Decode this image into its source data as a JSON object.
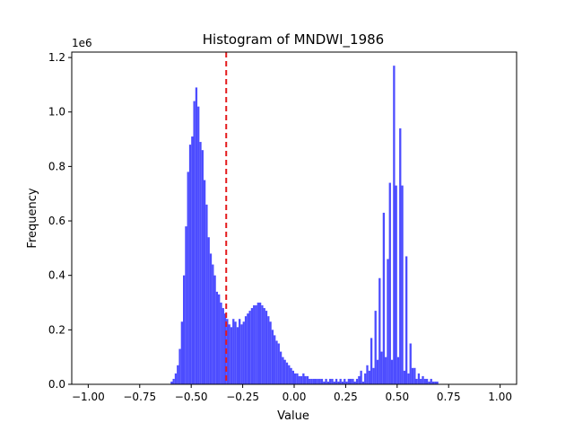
{
  "chart_data": {
    "type": "bar",
    "title": "Histogram of MNDWI_1986",
    "xlabel": "Value",
    "ylabel": "Frequency",
    "y_multiplier_label": "1e6",
    "xlim": [
      -1.08,
      1.08
    ],
    "ylim": [
      0,
      1.22
    ],
    "x_ticks": [
      -1.0,
      -0.75,
      -0.5,
      -0.25,
      0.0,
      0.25,
      0.5,
      0.75,
      1.0
    ],
    "x_tick_labels": [
      "−1.00",
      "−0.75",
      "−0.50",
      "−0.25",
      "0.00",
      "0.25",
      "0.50",
      "0.75",
      "1.00"
    ],
    "y_ticks": [
      0.0,
      0.2,
      0.4,
      0.6,
      0.8,
      1.0,
      1.2
    ],
    "y_tick_labels": [
      "0.0",
      "0.2",
      "0.4",
      "0.6",
      "0.8",
      "1.0",
      "1.2"
    ],
    "bin_width": 0.01,
    "bar_color": "#4c4cff",
    "threshold": {
      "value": -0.33,
      "color": "#e41a1c",
      "style": "dashed"
    },
    "bins": [
      [
        -0.6,
        0.01
      ],
      [
        -0.59,
        0.02
      ],
      [
        -0.58,
        0.04
      ],
      [
        -0.57,
        0.07
      ],
      [
        -0.56,
        0.13
      ],
      [
        -0.55,
        0.23
      ],
      [
        -0.54,
        0.4
      ],
      [
        -0.53,
        0.58
      ],
      [
        -0.52,
        0.78
      ],
      [
        -0.51,
        0.88
      ],
      [
        -0.5,
        0.91
      ],
      [
        -0.49,
        1.04
      ],
      [
        -0.48,
        1.09
      ],
      [
        -0.47,
        1.02
      ],
      [
        -0.46,
        0.89
      ],
      [
        -0.45,
        0.86
      ],
      [
        -0.44,
        0.75
      ],
      [
        -0.43,
        0.66
      ],
      [
        -0.42,
        0.54
      ],
      [
        -0.41,
        0.48
      ],
      [
        -0.4,
        0.44
      ],
      [
        -0.39,
        0.4
      ],
      [
        -0.38,
        0.34
      ],
      [
        -0.37,
        0.33
      ],
      [
        -0.36,
        0.3
      ],
      [
        -0.35,
        0.28
      ],
      [
        -0.34,
        0.26
      ],
      [
        -0.33,
        0.24
      ],
      [
        -0.32,
        0.22
      ],
      [
        -0.31,
        0.21
      ],
      [
        -0.3,
        0.24
      ],
      [
        -0.29,
        0.23
      ],
      [
        -0.28,
        0.21
      ],
      [
        -0.27,
        0.24
      ],
      [
        -0.26,
        0.22
      ],
      [
        -0.25,
        0.23
      ],
      [
        -0.24,
        0.25
      ],
      [
        -0.23,
        0.26
      ],
      [
        -0.22,
        0.27
      ],
      [
        -0.21,
        0.28
      ],
      [
        -0.2,
        0.29
      ],
      [
        -0.19,
        0.29
      ],
      [
        -0.18,
        0.3
      ],
      [
        -0.17,
        0.3
      ],
      [
        -0.16,
        0.29
      ],
      [
        -0.15,
        0.28
      ],
      [
        -0.14,
        0.27
      ],
      [
        -0.13,
        0.25
      ],
      [
        -0.12,
        0.23
      ],
      [
        -0.11,
        0.2
      ],
      [
        -0.1,
        0.18
      ],
      [
        -0.09,
        0.16
      ],
      [
        -0.08,
        0.15
      ],
      [
        -0.07,
        0.12
      ],
      [
        -0.06,
        0.1
      ],
      [
        -0.05,
        0.09
      ],
      [
        -0.04,
        0.08
      ],
      [
        -0.03,
        0.07
      ],
      [
        -0.02,
        0.06
      ],
      [
        -0.01,
        0.05
      ],
      [
        0.0,
        0.04
      ],
      [
        0.01,
        0.04
      ],
      [
        0.02,
        0.03
      ],
      [
        0.03,
        0.03
      ],
      [
        0.04,
        0.04
      ],
      [
        0.05,
        0.03
      ],
      [
        0.06,
        0.03
      ],
      [
        0.07,
        0.02
      ],
      [
        0.08,
        0.02
      ],
      [
        0.09,
        0.02
      ],
      [
        0.1,
        0.02
      ],
      [
        0.11,
        0.02
      ],
      [
        0.12,
        0.02
      ],
      [
        0.13,
        0.02
      ],
      [
        0.14,
        0.01
      ],
      [
        0.15,
        0.02
      ],
      [
        0.16,
        0.01
      ],
      [
        0.17,
        0.02
      ],
      [
        0.18,
        0.02
      ],
      [
        0.19,
        0.01
      ],
      [
        0.2,
        0.02
      ],
      [
        0.21,
        0.01
      ],
      [
        0.22,
        0.02
      ],
      [
        0.23,
        0.01
      ],
      [
        0.24,
        0.02
      ],
      [
        0.25,
        0.01
      ],
      [
        0.26,
        0.02
      ],
      [
        0.27,
        0.02
      ],
      [
        0.28,
        0.02
      ],
      [
        0.29,
        0.01
      ],
      [
        0.3,
        0.02
      ],
      [
        0.31,
        0.03
      ],
      [
        0.32,
        0.05
      ],
      [
        0.33,
        0.01
      ],
      [
        0.34,
        0.04
      ],
      [
        0.35,
        0.07
      ],
      [
        0.36,
        0.05
      ],
      [
        0.37,
        0.17
      ],
      [
        0.38,
        0.06
      ],
      [
        0.39,
        0.27
      ],
      [
        0.4,
        0.09
      ],
      [
        0.41,
        0.39
      ],
      [
        0.42,
        0.12
      ],
      [
        0.43,
        0.63
      ],
      [
        0.44,
        0.1
      ],
      [
        0.45,
        0.46
      ],
      [
        0.46,
        0.74
      ],
      [
        0.47,
        0.09
      ],
      [
        0.48,
        1.17
      ],
      [
        0.49,
        0.73
      ],
      [
        0.5,
        0.1
      ],
      [
        0.51,
        0.94
      ],
      [
        0.52,
        0.73
      ],
      [
        0.53,
        0.05
      ],
      [
        0.54,
        0.47
      ],
      [
        0.55,
        0.04
      ],
      [
        0.56,
        0.15
      ],
      [
        0.57,
        0.06
      ],
      [
        0.58,
        0.06
      ],
      [
        0.59,
        0.02
      ],
      [
        0.6,
        0.04
      ],
      [
        0.61,
        0.02
      ],
      [
        0.62,
        0.03
      ],
      [
        0.63,
        0.02
      ],
      [
        0.64,
        0.02
      ],
      [
        0.65,
        0.01
      ],
      [
        0.66,
        0.02
      ],
      [
        0.67,
        0.01
      ],
      [
        0.68,
        0.01
      ],
      [
        0.69,
        0.01
      ]
    ]
  }
}
